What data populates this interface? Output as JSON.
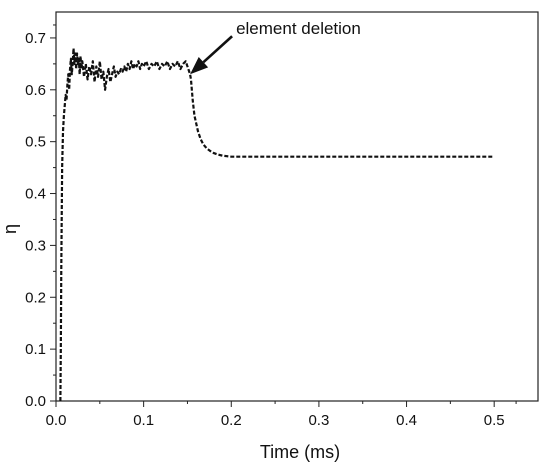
{
  "chart_data": {
    "type": "line",
    "title": "",
    "xlabel": "Time (ms)",
    "ylabel": "η",
    "xlim": [
      0.0,
      0.55
    ],
    "ylim": [
      0.0,
      0.75
    ],
    "xticks": [
      0.0,
      0.1,
      0.2,
      0.3,
      0.4,
      0.5
    ],
    "yticks": [
      0.0,
      0.1,
      0.2,
      0.3,
      0.4,
      0.5,
      0.6,
      0.7
    ],
    "xtick_labels": [
      "0.0",
      "0.1",
      "0.2",
      "0.3",
      "0.4",
      "0.5"
    ],
    "ytick_labels": [
      "0.0",
      "0.1",
      "0.2",
      "0.3",
      "0.4",
      "0.5",
      "0.6",
      "0.7"
    ],
    "grid": false,
    "series": [
      {
        "line_style": "dashed",
        "color": "#111111",
        "x": [
          0.005,
          0.0055,
          0.006,
          0.0065,
          0.007,
          0.008,
          0.009,
          0.01,
          0.011,
          0.012,
          0.013,
          0.014,
          0.015,
          0.016,
          0.017,
          0.018,
          0.019,
          0.02,
          0.021,
          0.022,
          0.023,
          0.024,
          0.025,
          0.026,
          0.027,
          0.028,
          0.029,
          0.03,
          0.032,
          0.034,
          0.036,
          0.038,
          0.04,
          0.042,
          0.044,
          0.046,
          0.048,
          0.05,
          0.052,
          0.054,
          0.056,
          0.058,
          0.06,
          0.062,
          0.064,
          0.066,
          0.068,
          0.07,
          0.072,
          0.074,
          0.076,
          0.078,
          0.08,
          0.082,
          0.084,
          0.086,
          0.088,
          0.09,
          0.092,
          0.094,
          0.096,
          0.098,
          0.1,
          0.103,
          0.106,
          0.109,
          0.112,
          0.115,
          0.118,
          0.121,
          0.124,
          0.127,
          0.13,
          0.133,
          0.136,
          0.139,
          0.142,
          0.145,
          0.148,
          0.15,
          0.151,
          0.152,
          0.153,
          0.154,
          0.155,
          0.156,
          0.157,
          0.158,
          0.16,
          0.162,
          0.165,
          0.168,
          0.172,
          0.176,
          0.18,
          0.185,
          0.19,
          0.195,
          0.2,
          0.21,
          0.22,
          0.23,
          0.24,
          0.25,
          0.26,
          0.3,
          0.35,
          0.4,
          0.45,
          0.5
        ],
        "y": [
          0.0,
          0.1,
          0.25,
          0.35,
          0.45,
          0.52,
          0.55,
          0.57,
          0.59,
          0.58,
          0.61,
          0.63,
          0.6,
          0.64,
          0.66,
          0.63,
          0.65,
          0.68,
          0.65,
          0.67,
          0.64,
          0.67,
          0.65,
          0.66,
          0.63,
          0.665,
          0.64,
          0.655,
          0.625,
          0.65,
          0.62,
          0.645,
          0.63,
          0.655,
          0.615,
          0.645,
          0.625,
          0.655,
          0.62,
          0.635,
          0.6,
          0.625,
          0.64,
          0.615,
          0.63,
          0.645,
          0.625,
          0.635,
          0.63,
          0.64,
          0.635,
          0.645,
          0.635,
          0.65,
          0.64,
          0.655,
          0.64,
          0.65,
          0.645,
          0.655,
          0.64,
          0.65,
          0.645,
          0.655,
          0.64,
          0.65,
          0.645,
          0.655,
          0.64,
          0.65,
          0.645,
          0.655,
          0.64,
          0.65,
          0.645,
          0.655,
          0.64,
          0.65,
          0.655,
          0.645,
          0.64,
          0.635,
          0.63,
          0.62,
          0.6,
          0.58,
          0.565,
          0.55,
          0.535,
          0.52,
          0.505,
          0.495,
          0.487,
          0.482,
          0.478,
          0.475,
          0.473,
          0.472,
          0.471,
          0.471,
          0.471,
          0.471,
          0.471,
          0.471,
          0.471,
          0.471,
          0.471,
          0.471,
          0.471,
          0.471
        ]
      }
    ],
    "annotations": [
      {
        "text": "element deletion",
        "target": [
          0.153,
          0.63
        ],
        "arrow": true
      }
    ]
  }
}
